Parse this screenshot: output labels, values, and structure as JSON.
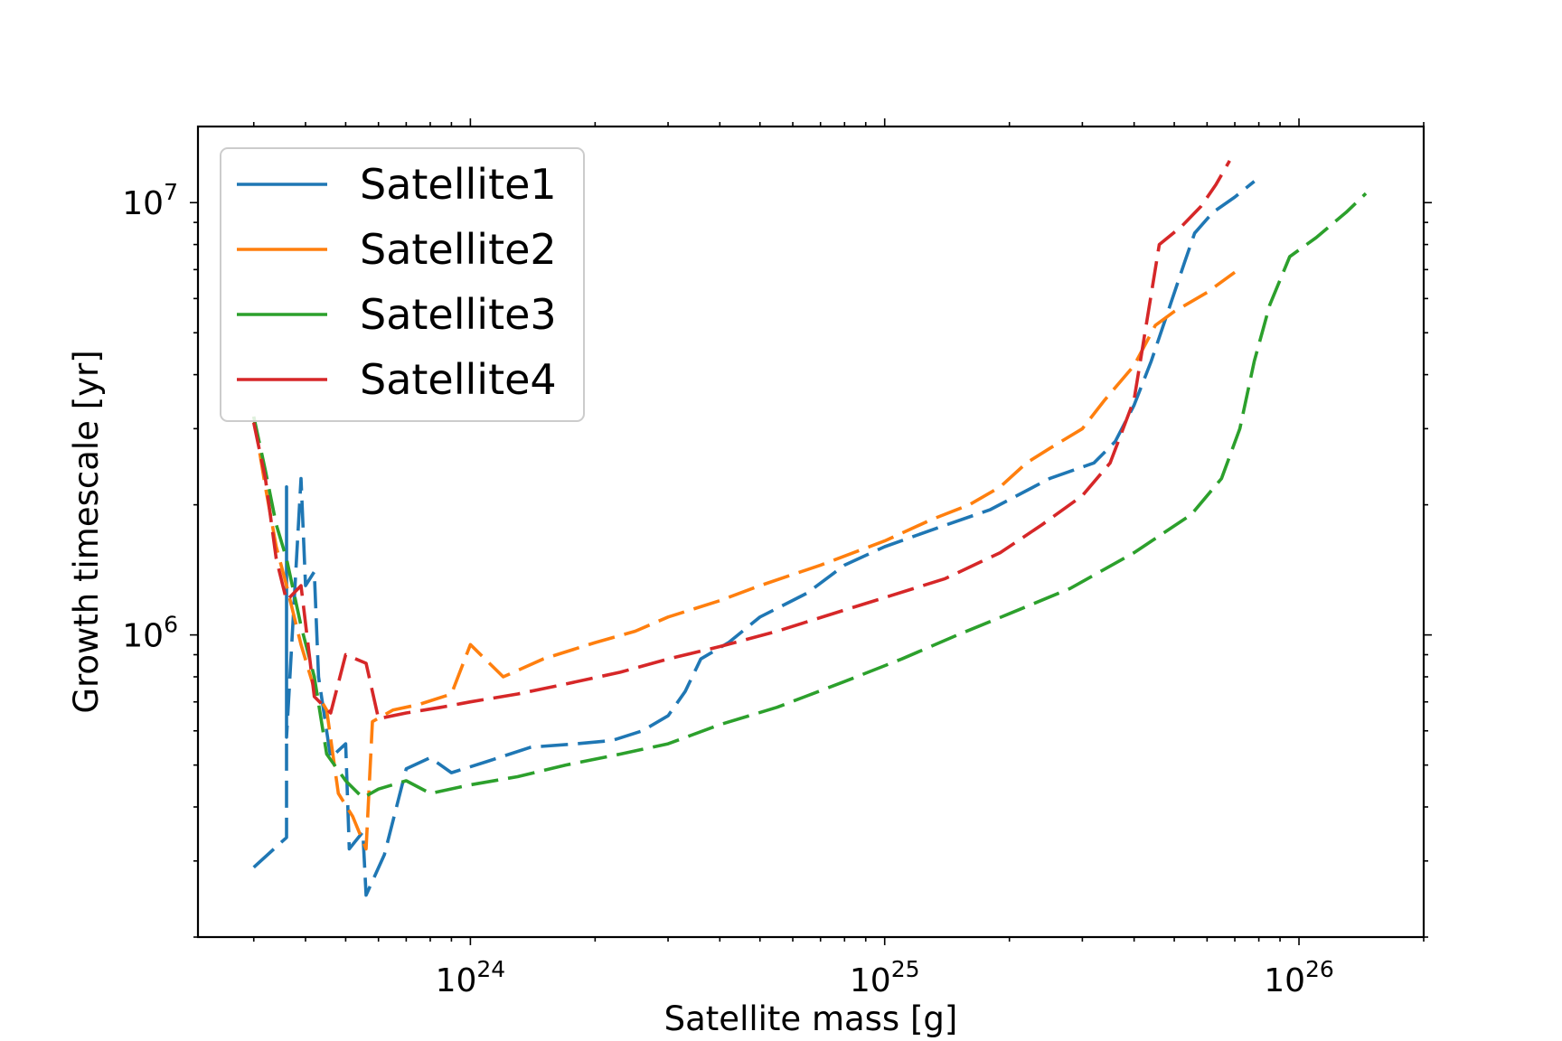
{
  "chart_data": {
    "type": "line",
    "title": "",
    "xlabel": "Satellite mass [g]",
    "ylabel": "Growth timescale [yr]",
    "xscale": "log",
    "yscale": "log",
    "xlim": [
      2.2e+23,
      2e+26
    ],
    "ylim": [
      200000.0,
      15000000.0
    ],
    "grid": false,
    "legend_position": "upper-left",
    "x_ticks": [
      {
        "value": 1e+24,
        "base": "10",
        "exp": "24"
      },
      {
        "value": 1e+25,
        "base": "10",
        "exp": "25"
      },
      {
        "value": 1e+26,
        "base": "10",
        "exp": "26"
      }
    ],
    "y_ticks": [
      {
        "value": 1000000.0,
        "base": "10",
        "exp": "6"
      },
      {
        "value": 10000000.0,
        "base": "10",
        "exp": "7"
      }
    ],
    "series": [
      {
        "name": "Satellite1",
        "color": "#1f77b4",
        "points": [
          [
            3e+23,
            290000.0
          ],
          [
            3.6e+23,
            340000.0
          ],
          [
            3.6e+23,
            2200000.0
          ],
          [
            3.6e+23,
            580000.0
          ],
          [
            3.9e+23,
            2300000.0
          ],
          [
            4e+23,
            1300000.0
          ],
          [
            4.2e+23,
            1400000.0
          ],
          [
            4.3e+23,
            800000.0
          ],
          [
            4.6e+23,
            520000.0
          ],
          [
            5e+23,
            560000.0
          ],
          [
            5.1e+23,
            320000.0
          ],
          [
            5.5e+23,
            350000.0
          ],
          [
            5.6e+23,
            250000.0
          ],
          [
            6.2e+23,
            310000.0
          ],
          [
            7e+23,
            490000.0
          ],
          [
            8e+23,
            520000.0
          ],
          [
            9e+23,
            480000.0
          ],
          [
            1.1e+24,
            510000.0
          ],
          [
            1.4e+24,
            550000.0
          ],
          [
            1.8e+24,
            560000.0
          ],
          [
            2.2e+24,
            570000.0
          ],
          [
            2.6e+24,
            600000.0
          ],
          [
            3e+24,
            650000.0
          ],
          [
            3.3e+24,
            740000.0
          ],
          [
            3.6e+24,
            880000.0
          ],
          [
            4.2e+24,
            960000.0
          ],
          [
            5e+24,
            1100000.0
          ],
          [
            6.5e+24,
            1250000.0
          ],
          [
            8e+24,
            1450000.0
          ],
          [
            1e+25,
            1600000.0
          ],
          [
            1.3e+25,
            1750000.0
          ],
          [
            1.8e+25,
            1950000.0
          ],
          [
            2.5e+25,
            2300000.0
          ],
          [
            3.2e+25,
            2500000.0
          ],
          [
            3.6e+25,
            2800000.0
          ],
          [
            4e+25,
            3400000.0
          ],
          [
            4.4e+25,
            4300000.0
          ],
          [
            4.8e+25,
            5500000.0
          ],
          [
            5.3e+25,
            7300000.0
          ],
          [
            5.6e+25,
            8500000.0
          ],
          [
            6.2e+25,
            9500000.0
          ],
          [
            7e+25,
            10300000.0
          ],
          [
            7.8e+25,
            11200000.0
          ]
        ]
      },
      {
        "name": "Satellite2",
        "color": "#ff7f0e",
        "points": [
          [
            3e+23,
            3200000.0
          ],
          [
            3.2e+23,
            2200000.0
          ],
          [
            3.4e+23,
            1600000.0
          ],
          [
            3.6e+23,
            1300000.0
          ],
          [
            3.9e+23,
            950000.0
          ],
          [
            4.2e+23,
            750000.0
          ],
          [
            4.5e+23,
            670000.0
          ],
          [
            4.8e+23,
            430000.0
          ],
          [
            5.2e+23,
            380000.0
          ],
          [
            5.6e+23,
            320000.0
          ],
          [
            5.8e+23,
            630000.0
          ],
          [
            6.5e+23,
            670000.0
          ],
          [
            7.5e+23,
            690000.0
          ],
          [
            9e+23,
            730000.0
          ],
          [
            1e+24,
            950000.0
          ],
          [
            1.2e+24,
            800000.0
          ],
          [
            1.5e+24,
            880000.0
          ],
          [
            2e+24,
            960000.0
          ],
          [
            2.5e+24,
            1020000.0
          ],
          [
            3e+24,
            1100000.0
          ],
          [
            4e+24,
            1200000.0
          ],
          [
            5e+24,
            1300000.0
          ],
          [
            7e+24,
            1450000.0
          ],
          [
            1e+25,
            1650000.0
          ],
          [
            1.3e+25,
            1850000.0
          ],
          [
            1.6e+25,
            2000000.0
          ],
          [
            1.9e+25,
            2200000.0
          ],
          [
            2.2e+25,
            2500000.0
          ],
          [
            2.5e+25,
            2700000.0
          ],
          [
            3e+25,
            3000000.0
          ],
          [
            3.4e+25,
            3500000.0
          ],
          [
            4e+25,
            4200000.0
          ],
          [
            4.5e+25,
            5200000.0
          ],
          [
            5e+25,
            5600000.0
          ],
          [
            6e+25,
            6200000.0
          ],
          [
            7e+25,
            6900000.0
          ]
        ]
      },
      {
        "name": "Satellite3",
        "color": "#2ca02c",
        "points": [
          [
            3e+23,
            3200000.0
          ],
          [
            3.2e+23,
            2400000.0
          ],
          [
            3.4e+23,
            1800000.0
          ],
          [
            3.6e+23,
            1500000.0
          ],
          [
            3.9e+23,
            1050000.0
          ],
          [
            4.2e+23,
            800000.0
          ],
          [
            4.5e+23,
            530000.0
          ],
          [
            5e+23,
            460000.0
          ],
          [
            5.5e+23,
            420000.0
          ],
          [
            6e+23,
            440000.0
          ],
          [
            7e+23,
            460000.0
          ],
          [
            8e+23,
            430000.0
          ],
          [
            1e+24,
            450000.0
          ],
          [
            1.3e+24,
            470000.0
          ],
          [
            1.7e+24,
            500000.0
          ],
          [
            2.3e+24,
            530000.0
          ],
          [
            3e+24,
            560000.0
          ],
          [
            4e+24,
            620000.0
          ],
          [
            5.5e+24,
            680000.0
          ],
          [
            8e+24,
            780000.0
          ],
          [
            1.1e+25,
            880000.0
          ],
          [
            1.5e+25,
            1000000.0
          ],
          [
            2e+25,
            1120000.0
          ],
          [
            2.8e+25,
            1280000.0
          ],
          [
            4e+25,
            1550000.0
          ],
          [
            5.5e+25,
            1900000.0
          ],
          [
            6.5e+25,
            2300000.0
          ],
          [
            7.2e+25,
            3000000.0
          ],
          [
            7.8e+25,
            4300000.0
          ],
          [
            8.5e+25,
            5800000.0
          ],
          [
            9.5e+25,
            7500000.0
          ],
          [
            1.1e+26,
            8300000.0
          ],
          [
            1.3e+26,
            9500000.0
          ],
          [
            1.45e+26,
            10500000.0
          ]
        ]
      },
      {
        "name": "Satellite4",
        "color": "#d62728",
        "points": [
          [
            3e+23,
            3100000.0
          ],
          [
            3.2e+23,
            2300000.0
          ],
          [
            3.4e+23,
            1500000.0
          ],
          [
            3.6e+23,
            1200000.0
          ],
          [
            3.9e+23,
            1300000.0
          ],
          [
            4.2e+23,
            720000.0
          ],
          [
            4.6e+23,
            660000.0
          ],
          [
            5e+23,
            900000.0
          ],
          [
            5.6e+23,
            860000.0
          ],
          [
            6e+23,
            640000.0
          ],
          [
            7e+23,
            660000.0
          ],
          [
            8.5e+23,
            680000.0
          ],
          [
            1e+24,
            700000.0
          ],
          [
            1.3e+24,
            730000.0
          ],
          [
            1.7e+24,
            770000.0
          ],
          [
            2.3e+24,
            820000.0
          ],
          [
            3e+24,
            880000.0
          ],
          [
            4e+24,
            940000.0
          ],
          [
            5.5e+24,
            1020000.0
          ],
          [
            7.5e+24,
            1120000.0
          ],
          [
            1e+25,
            1220000.0
          ],
          [
            1.4e+25,
            1350000.0
          ],
          [
            1.9e+25,
            1550000.0
          ],
          [
            2.4e+25,
            1800000.0
          ],
          [
            3e+25,
            2100000.0
          ],
          [
            3.5e+25,
            2500000.0
          ],
          [
            4e+25,
            3500000.0
          ],
          [
            4.6e+25,
            8000000.0
          ],
          [
            5.2e+25,
            8800000.0
          ],
          [
            5.8e+25,
            9800000.0
          ],
          [
            6.3e+25,
            11000000.0
          ],
          [
            6.8e+25,
            12500000.0
          ]
        ]
      }
    ]
  }
}
